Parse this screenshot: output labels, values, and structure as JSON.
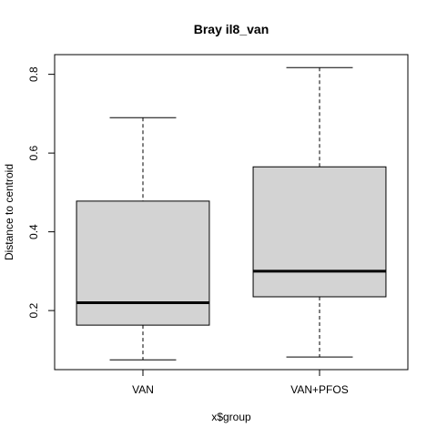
{
  "chart_data": {
    "type": "boxplot",
    "title": "Bray il8_van",
    "xlabel": "x$group",
    "ylabel": "Distance to centroid",
    "categories": [
      "VAN",
      "VAN+PFOS"
    ],
    "ylim": [
      0.05,
      0.85
    ],
    "yticks": [
      0.2,
      0.4,
      0.6,
      0.8
    ],
    "ytick_labels": [
      "0.2",
      "0.4",
      "0.6",
      "0.8"
    ],
    "grid": false,
    "box_fill": "#d3d3d3",
    "boxes": [
      {
        "category": "VAN",
        "whisker_low": 0.075,
        "q1": 0.163,
        "median": 0.22,
        "q3": 0.478,
        "whisker_high": 0.69
      },
      {
        "category": "VAN+PFOS",
        "whisker_low": 0.082,
        "q1": 0.235,
        "median": 0.3,
        "q3": 0.565,
        "whisker_high": 0.817
      }
    ]
  }
}
